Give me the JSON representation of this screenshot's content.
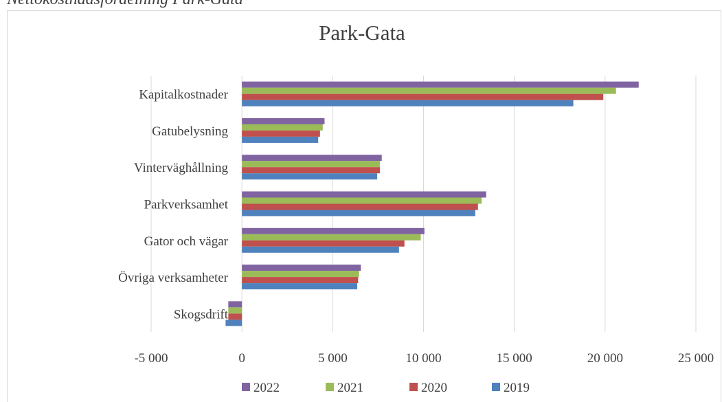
{
  "caption": "Nettokostnadsfördelning Park-Gata",
  "chart_data": {
    "type": "barh",
    "title": "Park-Gata",
    "categories": [
      "Kapitalkostnader",
      "Gatubelysning",
      "Vinterväghållning",
      "Parkverksamhet",
      "Gator och vägar",
      "Övriga verksamheter",
      "Skogsdrift"
    ],
    "series": [
      {
        "name": "2022",
        "color": "#8064a2",
        "values": [
          21850,
          4550,
          7700,
          13450,
          10050,
          6550,
          -750
        ]
      },
      {
        "name": "2021",
        "color": "#9bbb59",
        "values": [
          20600,
          4450,
          7600,
          13200,
          9850,
          6450,
          -750
        ]
      },
      {
        "name": "2020",
        "color": "#c0504d",
        "values": [
          19900,
          4300,
          7600,
          13000,
          8950,
          6400,
          -750
        ]
      },
      {
        "name": "2019",
        "color": "#4f81bd",
        "values": [
          18250,
          4200,
          7450,
          12850,
          8650,
          6350,
          -900
        ]
      }
    ],
    "xlim": [
      -5000,
      25000
    ],
    "xticks": [
      {
        "value": -5000,
        "label": "-5 000"
      },
      0,
      {
        "value": 5000,
        "label": "5 000"
      },
      {
        "value": 10000,
        "label": "10 000"
      },
      {
        "value": 15000,
        "label": "15 000"
      },
      {
        "value": 20000,
        "label": "20 000"
      },
      {
        "value": 25000,
        "label": "25 000"
      }
    ],
    "grid": true,
    "legend": "bottom"
  }
}
